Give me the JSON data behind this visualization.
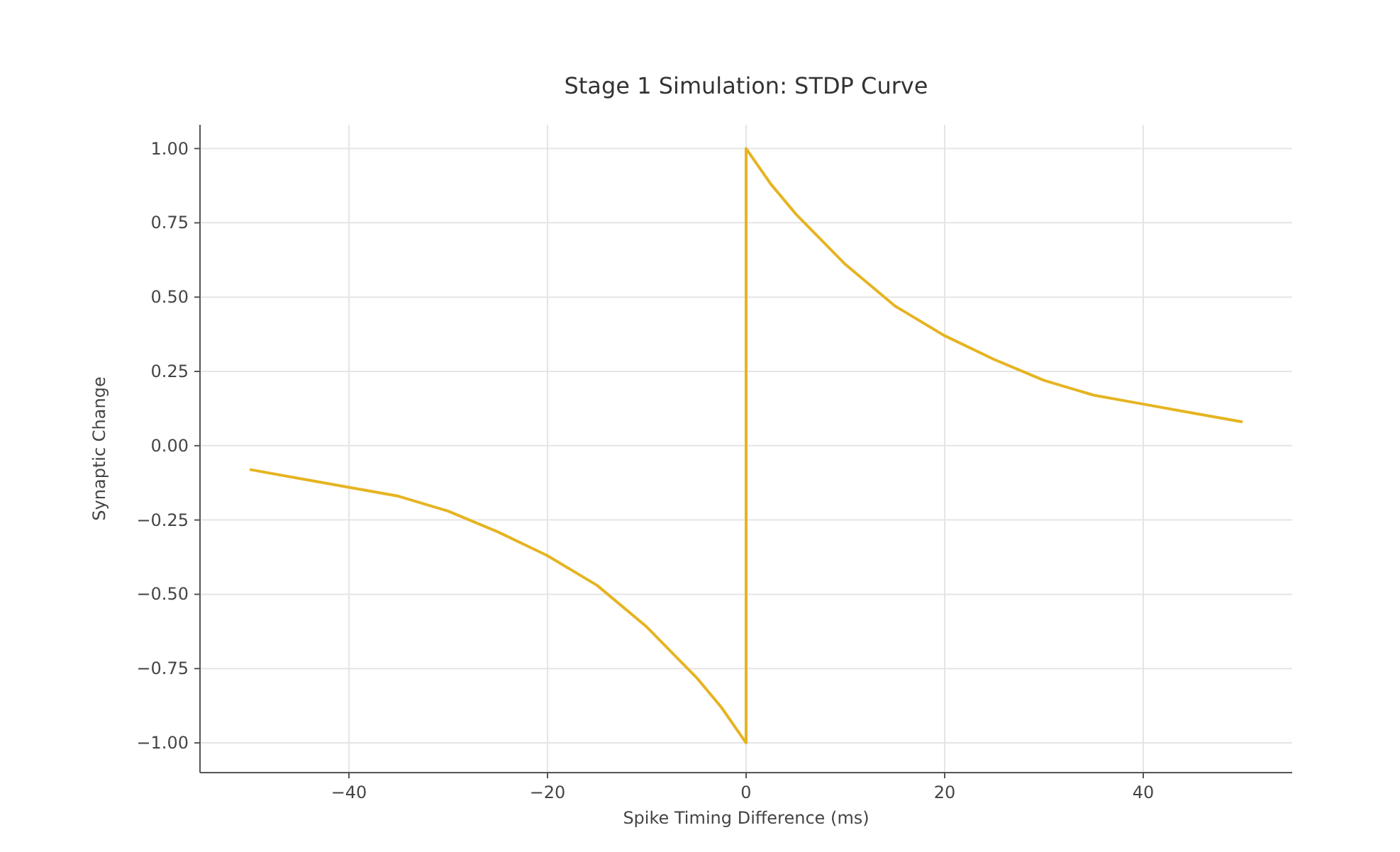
{
  "chart_data": {
    "type": "line",
    "title": "Stage 1 Simulation: STDP Curve",
    "xlabel": "Spike Timing Difference (ms)",
    "ylabel": "Synaptic Change",
    "x": [
      -50,
      -45,
      -40,
      -35,
      -30,
      -25,
      -20,
      -15,
      -10,
      -5,
      -2.5,
      0,
      0,
      2.5,
      5,
      10,
      15,
      20,
      25,
      30,
      35,
      40,
      45,
      50
    ],
    "series": [
      {
        "color": "#e6b422",
        "values": [
          -0.08,
          -0.11,
          -0.14,
          -0.17,
          -0.22,
          -0.29,
          -0.37,
          -0.47,
          -0.61,
          -0.78,
          -0.88,
          -1.0,
          1.0,
          0.88,
          0.78,
          0.61,
          0.47,
          0.37,
          0.29,
          0.22,
          0.17,
          0.14,
          0.11,
          0.08
        ]
      }
    ],
    "xlim": [
      -55,
      55
    ],
    "ylim": [
      -1.1,
      1.08
    ],
    "xticks": [
      {
        "value": -40,
        "label": "−40"
      },
      {
        "value": -20,
        "label": "−20"
      },
      0,
      20,
      40
    ],
    "yticks": [
      {
        "value": -1,
        "label": "−1.00"
      },
      {
        "value": -0.75,
        "label": "−0.75"
      },
      {
        "value": -0.5,
        "label": "−0.50"
      },
      {
        "value": -0.25,
        "label": "−0.25"
      },
      {
        "value": 0,
        "label": "0.00"
      },
      {
        "value": 0.25,
        "label": "0.25"
      },
      {
        "value": 0.5,
        "label": "0.50"
      },
      {
        "value": 0.75,
        "label": "0.75"
      },
      {
        "value": 1,
        "label": "1.00"
      }
    ],
    "grid": true,
    "marker": "none",
    "line_style": "solid"
  }
}
